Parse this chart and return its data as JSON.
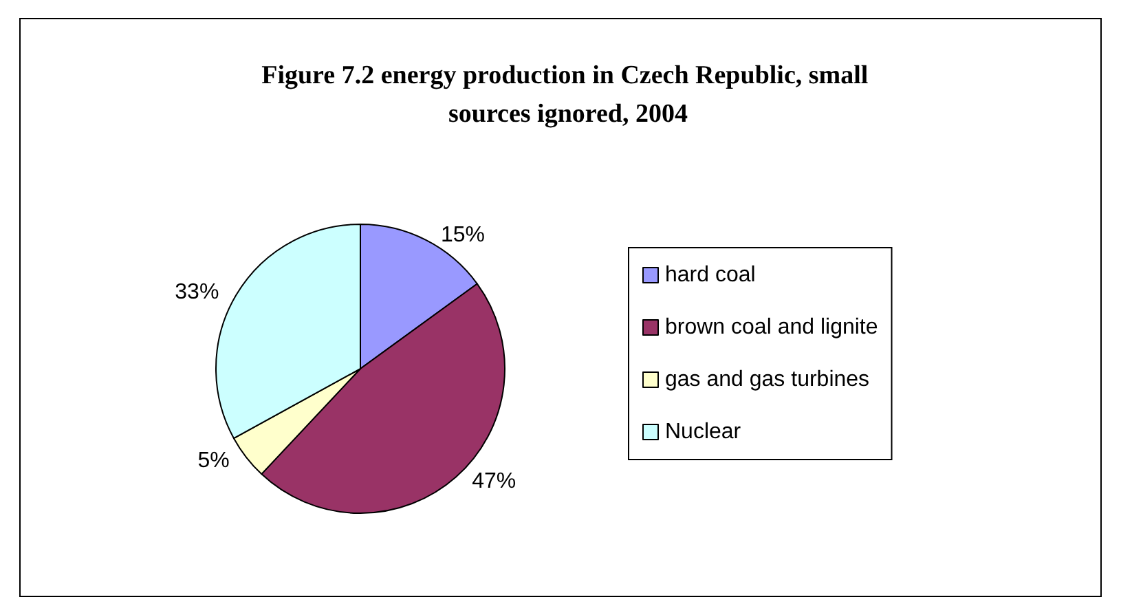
{
  "chart_data": {
    "type": "pie",
    "title": "Figure 7.2 energy production in Czech Republic, small sources ignored, 2004",
    "categories": [
      "hard coal",
      "brown coal and lignite",
      "gas and gas turbines",
      "Nuclear"
    ],
    "values": [
      15,
      47,
      5,
      33
    ],
    "value_labels": [
      "15%",
      "47%",
      "5%",
      "33%"
    ],
    "colors": [
      "#9999ff",
      "#993366",
      "#ffffcc",
      "#ccffff"
    ],
    "legend": "right"
  }
}
